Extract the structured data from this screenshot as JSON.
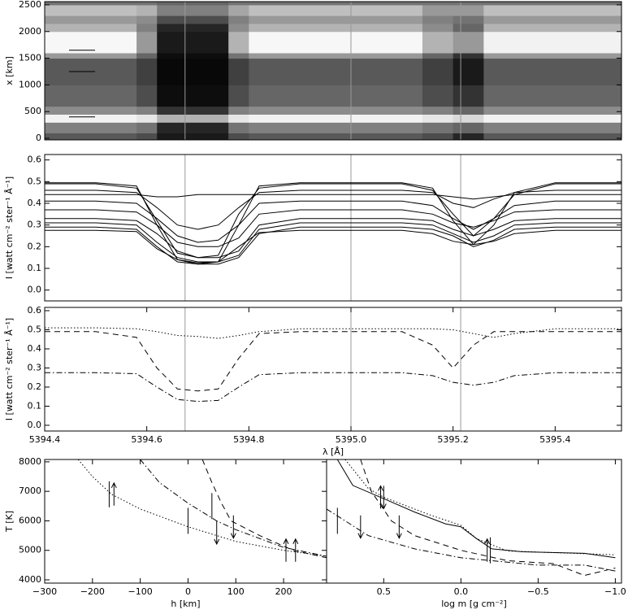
{
  "chart_data": [
    {
      "type": "heatmap",
      "ylabel": "x [km]",
      "xlim": [
        5394.4,
        5395.53
      ],
      "ylim": [
        -30,
        2560
      ],
      "yticks": [
        0,
        500,
        1000,
        1500,
        2000,
        2500
      ],
      "x_edges": [
        5394.4,
        5394.58,
        5394.62,
        5394.76,
        5394.8,
        5395.14,
        5395.2,
        5395.26,
        5395.53
      ],
      "y_edges": [
        -30,
        100,
        300,
        450,
        600,
        1000,
        1500,
        1600,
        2000,
        2150,
        2300,
        2500,
        2560
      ],
      "z": [
        [
          0.35,
          0.3,
          0.1,
          0.3,
          0.35,
          0.3,
          0.15,
          0.35
        ],
        [
          0.5,
          0.45,
          0.15,
          0.45,
          0.5,
          0.45,
          0.4,
          0.5
        ],
        [
          0.95,
          0.9,
          0.7,
          0.9,
          0.95,
          0.9,
          0.85,
          0.95
        ],
        [
          0.55,
          0.5,
          0.2,
          0.5,
          0.55,
          0.5,
          0.4,
          0.55
        ],
        [
          0.4,
          0.3,
          0.05,
          0.3,
          0.4,
          0.3,
          0.2,
          0.4
        ],
        [
          0.35,
          0.25,
          0.03,
          0.25,
          0.35,
          0.25,
          0.1,
          0.35
        ],
        [
          0.6,
          0.4,
          0.05,
          0.45,
          0.6,
          0.4,
          0.2,
          0.6
        ],
        [
          0.97,
          0.6,
          0.1,
          0.7,
          0.97,
          0.7,
          0.6,
          0.95
        ],
        [
          0.7,
          0.5,
          0.15,
          0.55,
          0.7,
          0.55,
          0.4,
          0.7
        ],
        [
          0.6,
          0.55,
          0.3,
          0.5,
          0.6,
          0.5,
          0.45,
          0.6
        ],
        [
          0.75,
          0.7,
          0.5,
          0.65,
          0.75,
          0.6,
          0.6,
          0.75
        ],
        [
          0.45,
          0.45,
          0.4,
          0.45,
          0.45,
          0.45,
          0.45,
          0.45
        ]
      ],
      "vlines": [
        5394.675,
        5395.0,
        5395.215
      ],
      "marker_y": [
        1650,
        1250,
        400
      ]
    },
    {
      "type": "line",
      "ylabel": "I [watt cm⁻² ster⁻¹ Å⁻¹]",
      "xlim": [
        5394.4,
        5395.53
      ],
      "ylim": [
        -0.05,
        0.625
      ],
      "yticks": [
        {
          "value": 0,
          "label": "0.0"
        },
        0.1,
        0.2,
        0.3,
        0.4,
        0.5,
        0.6
      ],
      "vlines": [
        5394.675,
        5395.0,
        5395.215
      ],
      "color": "#000000",
      "x": [
        5394.4,
        5394.5,
        5394.58,
        5394.62,
        5394.66,
        5394.7,
        5394.74,
        5394.78,
        5394.82,
        5394.9,
        5395.0,
        5395.1,
        5395.16,
        5395.2,
        5395.24,
        5395.28,
        5395.32,
        5395.4,
        5395.53
      ],
      "series": [
        {
          "dash": "solid",
          "values": [
            0.495,
            0.495,
            0.48,
            0.3,
            0.14,
            0.12,
            0.13,
            0.3,
            0.48,
            0.495,
            0.495,
            0.495,
            0.47,
            0.32,
            0.21,
            0.3,
            0.45,
            0.495,
            0.495
          ]
        },
        {
          "dash": "solid",
          "values": [
            0.49,
            0.49,
            0.47,
            0.32,
            0.17,
            0.15,
            0.16,
            0.35,
            0.47,
            0.49,
            0.49,
            0.49,
            0.46,
            0.35,
            0.25,
            0.33,
            0.44,
            0.49,
            0.49
          ]
        },
        {
          "dash": "solid",
          "values": [
            0.46,
            0.46,
            0.45,
            0.38,
            0.3,
            0.28,
            0.3,
            0.38,
            0.45,
            0.46,
            0.46,
            0.46,
            0.45,
            0.4,
            0.38,
            0.42,
            0.45,
            0.46,
            0.46
          ]
        },
        {
          "dash": "solid",
          "values": [
            0.44,
            0.44,
            0.44,
            0.43,
            0.43,
            0.44,
            0.44,
            0.44,
            0.44,
            0.44,
            0.44,
            0.44,
            0.44,
            0.43,
            0.42,
            0.43,
            0.44,
            0.44,
            0.44
          ]
        },
        {
          "dash": "solid",
          "values": [
            0.41,
            0.41,
            0.4,
            0.33,
            0.25,
            0.22,
            0.23,
            0.3,
            0.4,
            0.41,
            0.41,
            0.41,
            0.39,
            0.33,
            0.28,
            0.33,
            0.39,
            0.41,
            0.41
          ]
        },
        {
          "dash": "solid",
          "values": [
            0.37,
            0.37,
            0.36,
            0.3,
            0.22,
            0.2,
            0.2,
            0.24,
            0.35,
            0.37,
            0.37,
            0.37,
            0.35,
            0.31,
            0.29,
            0.32,
            0.36,
            0.37,
            0.37
          ]
        },
        {
          "dash": "solid",
          "values": [
            0.33,
            0.33,
            0.32,
            0.26,
            0.18,
            0.15,
            0.15,
            0.18,
            0.3,
            0.33,
            0.33,
            0.33,
            0.32,
            0.28,
            0.25,
            0.28,
            0.32,
            0.33,
            0.33
          ]
        },
        {
          "dash": "solid",
          "values": [
            0.31,
            0.31,
            0.3,
            0.22,
            0.15,
            0.13,
            0.13,
            0.16,
            0.28,
            0.31,
            0.31,
            0.31,
            0.3,
            0.26,
            0.22,
            0.25,
            0.3,
            0.31,
            0.31
          ]
        },
        {
          "dash": "solid",
          "values": [
            0.29,
            0.29,
            0.28,
            0.2,
            0.13,
            0.12,
            0.12,
            0.15,
            0.26,
            0.29,
            0.29,
            0.29,
            0.28,
            0.25,
            0.2,
            0.23,
            0.28,
            0.29,
            0.29
          ]
        },
        {
          "dash": "solid",
          "values": [
            0.275,
            0.275,
            0.27,
            0.19,
            0.14,
            0.125,
            0.13,
            0.2,
            0.265,
            0.275,
            0.275,
            0.275,
            0.26,
            0.225,
            0.21,
            0.225,
            0.26,
            0.275,
            0.275
          ]
        }
      ]
    },
    {
      "type": "line",
      "ylabel": "I [watt cm⁻² ster⁻¹ Å⁻¹]",
      "xlabel": "λ [Å]",
      "xlim": [
        5394.4,
        5395.53
      ],
      "ylim": [
        -0.03,
        0.617
      ],
      "xticks": [
        5394.4,
        5394.6,
        5394.8,
        {
          "value": 5395,
          "label": "5395.0"
        },
        5395.2,
        5395.4
      ],
      "yticks": [
        {
          "value": 0,
          "label": "0.0"
        },
        0.1,
        0.2,
        0.3,
        0.4,
        0.5,
        0.6
      ],
      "vlines": [
        5394.675,
        5395.0,
        5395.215
      ],
      "color": "#000000",
      "x": [
        5394.4,
        5394.5,
        5394.58,
        5394.62,
        5394.66,
        5394.7,
        5394.74,
        5394.78,
        5394.82,
        5394.9,
        5395.0,
        5395.1,
        5395.16,
        5395.2,
        5395.24,
        5395.28,
        5395.32,
        5395.4,
        5395.53
      ],
      "series": [
        {
          "dash": "dotted",
          "values": [
            0.51,
            0.51,
            0.505,
            0.49,
            0.47,
            0.465,
            0.455,
            0.47,
            0.49,
            0.505,
            0.505,
            0.505,
            0.505,
            0.5,
            0.48,
            0.46,
            0.48,
            0.505,
            0.505
          ]
        },
        {
          "dash": "dashed",
          "values": [
            0.49,
            0.49,
            0.46,
            0.3,
            0.19,
            0.18,
            0.19,
            0.35,
            0.48,
            0.49,
            0.49,
            0.49,
            0.42,
            0.3,
            0.42,
            0.49,
            0.49,
            0.49,
            0.49
          ]
        },
        {
          "dash": "dashdot",
          "values": [
            0.275,
            0.275,
            0.27,
            0.2,
            0.135,
            0.125,
            0.13,
            0.2,
            0.265,
            0.275,
            0.275,
            0.275,
            0.26,
            0.225,
            0.21,
            0.225,
            0.26,
            0.275,
            0.275
          ]
        }
      ]
    },
    {
      "type": "line",
      "ylabel": "T [K]",
      "xlabel": "h [km]",
      "xlim": [
        -300,
        290
      ],
      "ylim": [
        3890,
        8080
      ],
      "xticks": [
        {
          "value": -300,
          "label": "−300"
        },
        {
          "value": -200,
          "label": "−200"
        },
        {
          "value": -100,
          "label": "−100"
        },
        0,
        100,
        200
      ],
      "yticks": [
        4000,
        5000,
        6000,
        7000,
        8000
      ],
      "color": "#000000",
      "series": [
        {
          "dash": "dotted",
          "x": [
            -230,
            -200,
            -160,
            -100,
            0,
            100,
            200,
            290
          ],
          "values": [
            8080,
            7500,
            6900,
            6400,
            5800,
            5300,
            5000,
            4800
          ]
        },
        {
          "dash": "dashdot",
          "x": [
            -100,
            -60,
            0,
            60,
            100,
            200,
            290
          ],
          "values": [
            8080,
            7300,
            6600,
            6000,
            5700,
            5100,
            4800
          ]
        },
        {
          "dash": "dashed",
          "x": [
            30,
            50,
            70,
            90,
            150,
            220,
            290
          ],
          "values": [
            8080,
            7300,
            6600,
            6000,
            5500,
            5000,
            4750
          ]
        }
      ],
      "markers": {
        "x": [
          -165,
          -155,
          0,
          50,
          60,
          95,
          205,
          225
        ],
        "y": [
          6900,
          6900,
          6000,
          6500,
          5600,
          5800,
          5000,
          5000
        ],
        "kind": [
          "bar",
          "up",
          "bar",
          "bar",
          "down",
          "down",
          "up",
          "up"
        ]
      }
    },
    {
      "type": "line",
      "xlabel": "log m [g cm⁻²]",
      "xlim": [
        0.87,
        -1.04
      ],
      "ylim": [
        3890,
        8080
      ],
      "xticks": [
        0.5,
        {
          "value": 0,
          "label": "0.0"
        },
        {
          "value": -0.5,
          "label": "−0.5"
        },
        {
          "value": -1,
          "label": "−1.0"
        }
      ],
      "color": "#000000",
      "series": [
        {
          "dash": "solid",
          "x": [
            0.8,
            0.7,
            0.5,
            0.3,
            0.1,
            0,
            -0.1,
            -0.2,
            -0.4,
            -0.8,
            -1.0
          ],
          "values": [
            8080,
            7200,
            6750,
            6300,
            5900,
            5800,
            5400,
            5050,
            4950,
            4900,
            4750
          ]
        },
        {
          "dash": "dotted",
          "x": [
            0.75,
            0.6,
            0.5,
            0.2,
            0,
            -0.1,
            -0.3,
            -1.0
          ],
          "values": [
            8080,
            7100,
            6800,
            6200,
            5850,
            5400,
            4980,
            4850
          ]
        },
        {
          "dash": "dashed",
          "x": [
            0.65,
            0.58,
            0.45,
            0.3,
            0,
            -0.3,
            -0.6,
            -0.8,
            -1.0
          ],
          "values": [
            8080,
            7000,
            6000,
            5500,
            5000,
            4650,
            4550,
            4150,
            4400
          ]
        },
        {
          "dash": "dashdot",
          "x": [
            0.87,
            0.6,
            0.3,
            0,
            -0.5,
            -0.8,
            -1.0
          ],
          "values": [
            6400,
            5500,
            5050,
            4750,
            4500,
            4500,
            4300
          ]
        }
      ],
      "markers": {
        "x": [
          0.8,
          0.65,
          0.52,
          0.5,
          0.4,
          -0.17,
          -0.19
        ],
        "y": [
          6000,
          5800,
          6800,
          6800,
          5800,
          5000,
          5000
        ],
        "kind": [
          "bar",
          "down",
          "up",
          "down",
          "down",
          "up",
          "bar"
        ]
      }
    }
  ]
}
